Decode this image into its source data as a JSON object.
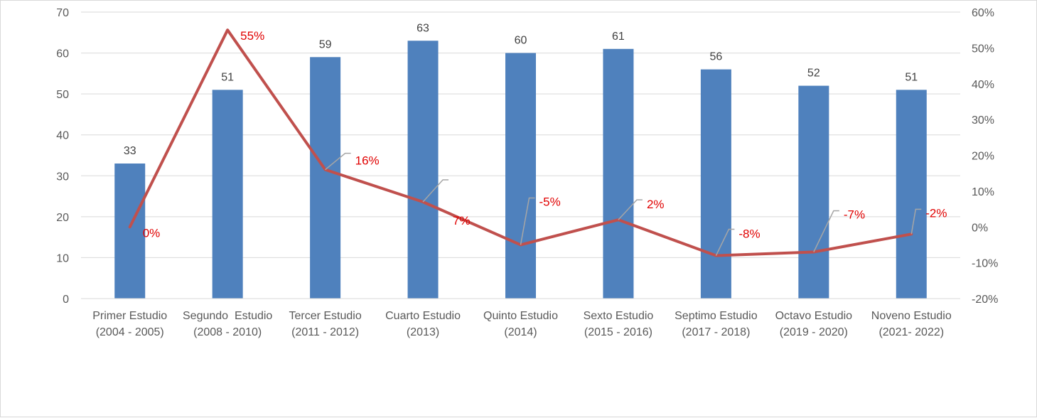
{
  "chart_data": {
    "type": "bar",
    "categories": [
      [
        "Primer Estudio",
        "(2004 - 2005)"
      ],
      [
        "Segundo  Estudio",
        "(2008 - 2010)"
      ],
      [
        "Tercer Estudio",
        "(2011 - 2012)"
      ],
      [
        "Cuarto Estudio",
        "(2013)"
      ],
      [
        "Quinto Estudio",
        "(2014)"
      ],
      [
        "Sexto Estudio",
        "(2015 - 2016)"
      ],
      [
        "Septimo Estudio",
        "(2017 - 2018)"
      ],
      [
        "Octavo Estudio",
        "(2019 - 2020)"
      ],
      [
        "Noveno Estudio",
        "(2021- 2022)"
      ]
    ],
    "series": [
      {
        "type": "bar",
        "axis": "left",
        "color": "#4f81bd",
        "values": [
          33,
          51,
          59,
          63,
          60,
          61,
          56,
          52,
          51
        ],
        "labels": [
          "33",
          "51",
          "59",
          "63",
          "60",
          "61",
          "56",
          "52",
          "51"
        ]
      },
      {
        "type": "line",
        "axis": "right",
        "color": "#c0504d",
        "values": [
          0,
          55,
          16,
          7,
          -5,
          2,
          -8,
          -7,
          -2
        ],
        "labels": [
          "0%",
          "55%",
          "16%",
          "7%",
          "-5%",
          "2%",
          "-8%",
          "-7%",
          "-2%"
        ],
        "label_color": "#e00000"
      }
    ],
    "y_left": {
      "range": [
        0,
        70
      ],
      "ticks": [
        "0",
        "10",
        "20",
        "30",
        "40",
        "50",
        "60",
        "70"
      ]
    },
    "y_right": {
      "range": [
        -20,
        60
      ],
      "ticks": [
        "-20%",
        "-10%",
        "0%",
        "10%",
        "20%",
        "30%",
        "40%",
        "50%",
        "60%"
      ]
    },
    "grid": true,
    "legend": "none"
  }
}
